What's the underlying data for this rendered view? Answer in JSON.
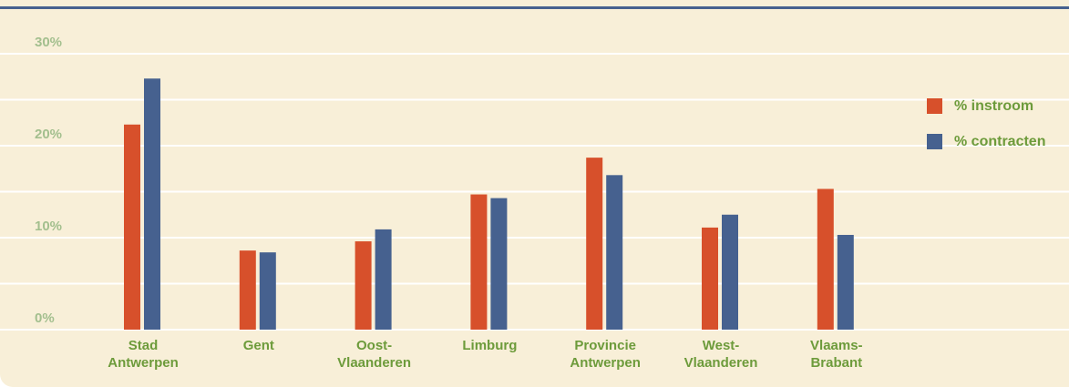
{
  "chart_data": {
    "type": "bar",
    "categories": [
      "Stad Antwerpen",
      "Gent",
      "Oost-Vlaanderen",
      "Limburg",
      "Provincie Antwerpen",
      "West-Vlaanderen",
      "Vlaams-Brabant"
    ],
    "series": [
      {
        "name": "% instroom",
        "color": "#d7502b",
        "values": [
          22.3,
          8.6,
          9.6,
          14.7,
          18.7,
          11.1,
          15.3
        ]
      },
      {
        "name": "% contracten",
        "color": "#46618f",
        "values": [
          27.3,
          8.4,
          10.9,
          14.3,
          16.8,
          12.5,
          10.3
        ]
      }
    ],
    "ylim": [
      0,
      30
    ],
    "yticks": [
      {
        "value": 0,
        "label": "0%"
      },
      {
        "value": 10,
        "label": "10%"
      },
      {
        "value": 20,
        "label": "20%"
      },
      {
        "value": 30,
        "label": "30%"
      }
    ],
    "yticks_minor": [
      5,
      15,
      25
    ],
    "grid": true,
    "legend": "right"
  }
}
